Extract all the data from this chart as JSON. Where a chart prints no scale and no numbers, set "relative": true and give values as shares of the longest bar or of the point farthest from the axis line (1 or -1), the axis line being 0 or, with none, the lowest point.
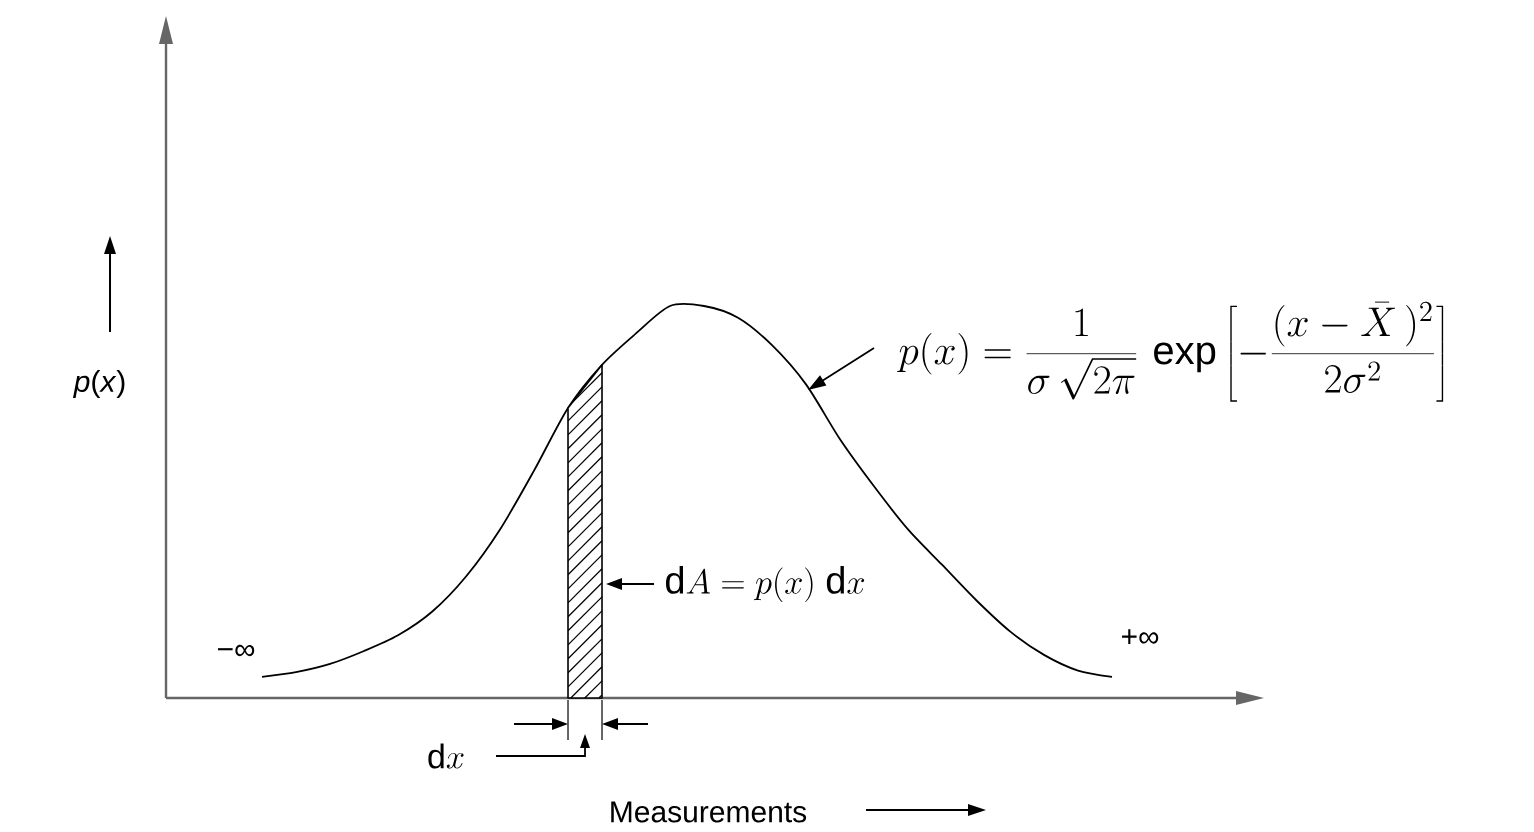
{
  "chart_data": {
    "type": "line",
    "xlabel": "Measurements",
    "ylabel": "*p*(*x*)",
    "relative": true,
    "categories": [
      null,
      null,
      null,
      null,
      null,
      null,
      null,
      null,
      null,
      null,
      null,
      null,
      null,
      null,
      null,
      null,
      null,
      null,
      null,
      null,
      null,
      null,
      null,
      null,
      null,
      null
    ],
    "series": [
      {
        "color": "#000000",
        "values": [
          0.054,
          0.066,
          0.087,
          0.12,
          0.16,
          0.22,
          0.31,
          0.43,
          0.58,
          0.74,
          0.85,
          0.93,
          1,
          1,
          0.97,
          0.9,
          0.8,
          0.66,
          0.54,
          0.43,
          0.34,
          0.25,
          0.17,
          0.11,
          0.07,
          0.054
        ]
      },
      {
        "type": "area",
        "color": "#000000",
        "values": [
          null,
          null,
          null,
          null,
          null,
          null,
          null,
          null,
          null,
          0.74,
          0.85,
          null,
          null,
          null,
          null,
          null,
          null,
          null,
          null,
          null,
          null,
          null,
          null,
          null,
          null,
          null
        ]
      }
    ],
    "annotations": [
      "−∞",
      "+∞",
      "\\mathrm{d}A = p(x)\\;\\mathrm{d}x",
      "p(x) = \\frac{1}{\\sigma\\,\\sqrt{2\\pi}}\\,\\exp\\left[-\\frac{(x-\\bar{X}\\,)^{2}}{2\\sigma^{2}}\\right]",
      "\\mathrm{d}x"
    ]
  }
}
